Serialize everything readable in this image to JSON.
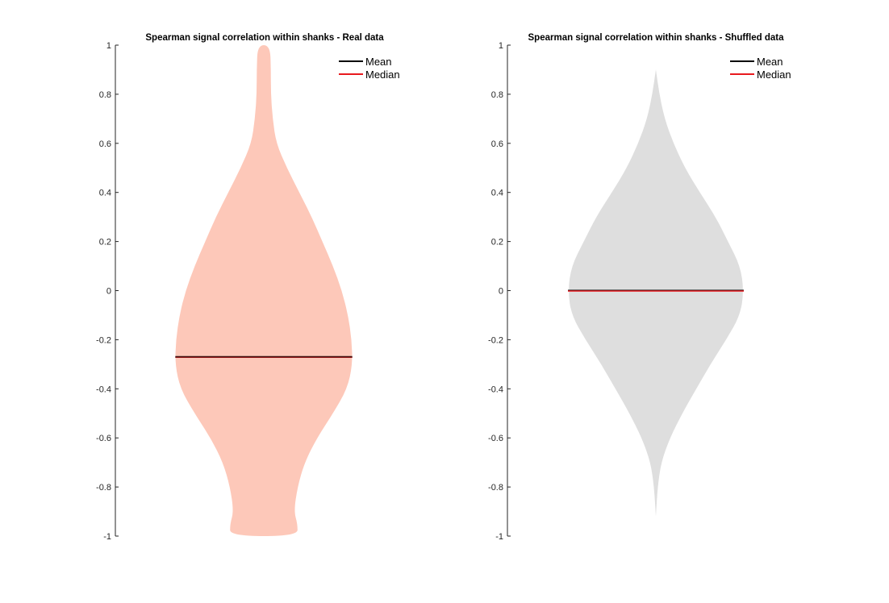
{
  "chart_data": [
    {
      "type": "violin",
      "title": "Spearman signal correlation within shanks - Real data",
      "ylim": [
        -1,
        1
      ],
      "yticks": [
        -1,
        -0.8,
        -0.6,
        -0.4,
        -0.2,
        0,
        0.2,
        0.4,
        0.6,
        0.8,
        1
      ],
      "ytick_labels": [
        "-1",
        "-0.8",
        "-0.6",
        "-0.4",
        "-0.2",
        "0",
        "0.2",
        "0.4",
        "0.6",
        "0.8",
        "1"
      ],
      "fill_color": "#fdc8b9",
      "legend": [
        {
          "label": "Mean",
          "color": "#000000"
        },
        {
          "label": "Median",
          "color": "#e8191e"
        }
      ],
      "legend_position": "top-right",
      "mean": -0.27,
      "median": -0.27,
      "density_profile": [
        {
          "y": 1.0,
          "w": 0.07
        },
        {
          "y": 0.9,
          "w": 0.08
        },
        {
          "y": 0.8,
          "w": 0.08
        },
        {
          "y": 0.7,
          "w": 0.1
        },
        {
          "y": 0.6,
          "w": 0.14
        },
        {
          "y": 0.5,
          "w": 0.26
        },
        {
          "y": 0.4,
          "w": 0.4
        },
        {
          "y": 0.3,
          "w": 0.54
        },
        {
          "y": 0.2,
          "w": 0.66
        },
        {
          "y": 0.1,
          "w": 0.78
        },
        {
          "y": 0.0,
          "w": 0.88
        },
        {
          "y": -0.1,
          "w": 0.95
        },
        {
          "y": -0.2,
          "w": 0.99
        },
        {
          "y": -0.3,
          "w": 1.0
        },
        {
          "y": -0.4,
          "w": 0.94
        },
        {
          "y": -0.5,
          "w": 0.78
        },
        {
          "y": -0.6,
          "w": 0.6
        },
        {
          "y": -0.7,
          "w": 0.46
        },
        {
          "y": -0.8,
          "w": 0.38
        },
        {
          "y": -0.9,
          "w": 0.34
        },
        {
          "y": -0.95,
          "w": 0.38
        },
        {
          "y": -1.0,
          "w": 0.38
        }
      ]
    },
    {
      "type": "violin",
      "title": "Spearman signal correlation within shanks - Shuffled data",
      "ylim": [
        -1,
        1
      ],
      "yticks": [
        -1,
        -0.8,
        -0.6,
        -0.4,
        -0.2,
        0,
        0.2,
        0.4,
        0.6,
        0.8,
        1
      ],
      "ytick_labels": [
        "-1",
        "-0.8",
        "-0.6",
        "-0.4",
        "-0.2",
        "0",
        "0.2",
        "0.4",
        "0.6",
        "0.8",
        "1"
      ],
      "fill_color": "#dedede",
      "legend": [
        {
          "label": "Mean",
          "color": "#000000"
        },
        {
          "label": "Median",
          "color": "#e8191e"
        }
      ],
      "legend_position": "top-right",
      "mean": 0.0,
      "median": 0.0,
      "density_profile": [
        {
          "y": 0.9,
          "w": 0.0
        },
        {
          "y": 0.8,
          "w": 0.04
        },
        {
          "y": 0.7,
          "w": 0.1
        },
        {
          "y": 0.6,
          "w": 0.2
        },
        {
          "y": 0.5,
          "w": 0.33
        },
        {
          "y": 0.4,
          "w": 0.5
        },
        {
          "y": 0.3,
          "w": 0.68
        },
        {
          "y": 0.2,
          "w": 0.82
        },
        {
          "y": 0.1,
          "w": 0.96
        },
        {
          "y": 0.0,
          "w": 1.0
        },
        {
          "y": -0.1,
          "w": 0.96
        },
        {
          "y": -0.2,
          "w": 0.8
        },
        {
          "y": -0.3,
          "w": 0.62
        },
        {
          "y": -0.4,
          "w": 0.46
        },
        {
          "y": -0.5,
          "w": 0.3
        },
        {
          "y": -0.6,
          "w": 0.16
        },
        {
          "y": -0.7,
          "w": 0.06
        },
        {
          "y": -0.8,
          "w": 0.02
        },
        {
          "y": -0.92,
          "w": 0.0
        }
      ]
    }
  ]
}
